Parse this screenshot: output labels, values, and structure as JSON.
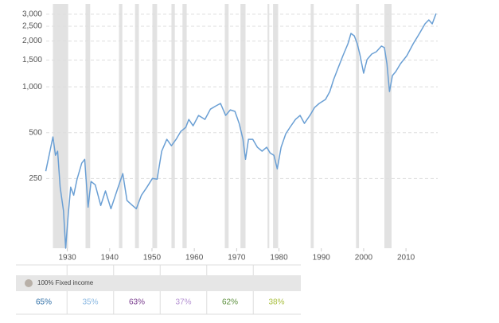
{
  "chart_data": {
    "type": "line",
    "log_scale": true,
    "grid": true,
    "color": "#6a9fd4",
    "shade_color": "#e2e2e2",
    "xlim": [
      1925,
      2017.5
    ],
    "xticks": [
      1930,
      1940,
      1950,
      1960,
      1970,
      1980,
      1990,
      2000,
      2010
    ],
    "ylim": [
      87,
      3300
    ],
    "yticks": [
      250,
      500,
      {
        "value": 1000,
        "label": "1,000"
      },
      {
        "value": 1500,
        "label": "1,500"
      },
      {
        "value": 2000,
        "label": "2,000"
      },
      {
        "value": 2500,
        "label": "2,500"
      },
      {
        "value": 3000,
        "label": "3,000"
      }
    ],
    "recessions": [
      [
        1926.6,
        1930.2
      ],
      [
        1934.3,
        1935.4
      ],
      [
        1942.2,
        1943.0
      ],
      [
        1946.0,
        1946.9
      ],
      [
        1950.1,
        1951.2
      ],
      [
        1954.6,
        1955.4
      ],
      [
        1957.2,
        1958.2
      ],
      [
        1967.2,
        1968.1
      ],
      [
        1970.9,
        1972.1
      ],
      [
        1977.3,
        1977.7
      ],
      [
        1978.6,
        1979.8
      ],
      [
        1987.5,
        1988.2
      ],
      [
        1998.2,
        1998.9
      ],
      [
        2004.9,
        2006.6
      ]
    ],
    "x": [
      1924.9,
      1925.7,
      1926.6,
      1927.2,
      1927.7,
      1928.3,
      1929.1,
      1929.6,
      1930.2,
      1930.8,
      1931.5,
      1932.3,
      1933.4,
      1934.1,
      1934.9,
      1935.6,
      1936.6,
      1937.9,
      1939.0,
      1940.3,
      1941.8,
      1943.1,
      1944.1,
      1945.4,
      1946.3,
      1947.5,
      1948.8,
      1950.1,
      1951.2,
      1952.3,
      1953.5,
      1954.6,
      1955.7,
      1956.8,
      1958.0,
      1958.7,
      1959.7,
      1961.0,
      1962.5,
      1963.8,
      1965.1,
      1966.2,
      1967.4,
      1968.5,
      1969.6,
      1970.6,
      1971.5,
      1972.1,
      1972.8,
      1973.8,
      1974.9,
      1976.0,
      1977.1,
      1977.9,
      1978.8,
      1979.6,
      1980.5,
      1981.6,
      1982.6,
      1983.9,
      1985.0,
      1986.0,
      1987.3,
      1988.4,
      1989.5,
      1991.0,
      1992.0,
      1992.9,
      1994.0,
      1995.1,
      1996.3,
      1997.0,
      1997.8,
      1998.5,
      1999.1,
      2000.0,
      2000.8,
      2001.9,
      2003.0,
      2004.2,
      2004.9,
      2005.5,
      2006.1,
      2006.8,
      2007.6,
      2008.7,
      2010.2,
      2011.7,
      2013.2,
      2014.5,
      2015.4,
      2016.2,
      2017.1
    ],
    "values": [
      279,
      355,
      469,
      355,
      378,
      219,
      153,
      87,
      144,
      219,
      194,
      247,
      315,
      334,
      162,
      239,
      227,
      166,
      207,
      158,
      211,
      269,
      179,
      166,
      158,
      194,
      219,
      250,
      247,
      378,
      452,
      410,
      452,
      509,
      542,
      611,
      555,
      649,
      611,
      714,
      750,
      778,
      649,
      706,
      690,
      575,
      452,
      334,
      452,
      452,
      401,
      378,
      401,
      368,
      355,
      289,
      401,
      492,
      542,
      611,
      649,
      575,
      649,
      731,
      778,
      826,
      931,
      1117,
      1337,
      1603,
      1919,
      2244,
      2163,
      1919,
      1641,
      1230,
      1510,
      1641,
      1702,
      1854,
      1810,
      1419,
      931,
      1186,
      1259,
      1419,
      1603,
      1919,
      2244,
      2594,
      2754,
      2594,
      3034
    ]
  },
  "table": {
    "row_label": "100% Fixed income",
    "cells": [
      {
        "text": "65%",
        "color": "#2e6ea6"
      },
      {
        "text": "35%",
        "color": "#8ab8e2"
      },
      {
        "text": "63%",
        "color": "#7a3d8e"
      },
      {
        "text": "37%",
        "color": "#b490d2"
      },
      {
        "text": "62%",
        "color": "#5a8e3a"
      },
      {
        "text": "38%",
        "color": "#a9bf3f"
      }
    ]
  }
}
